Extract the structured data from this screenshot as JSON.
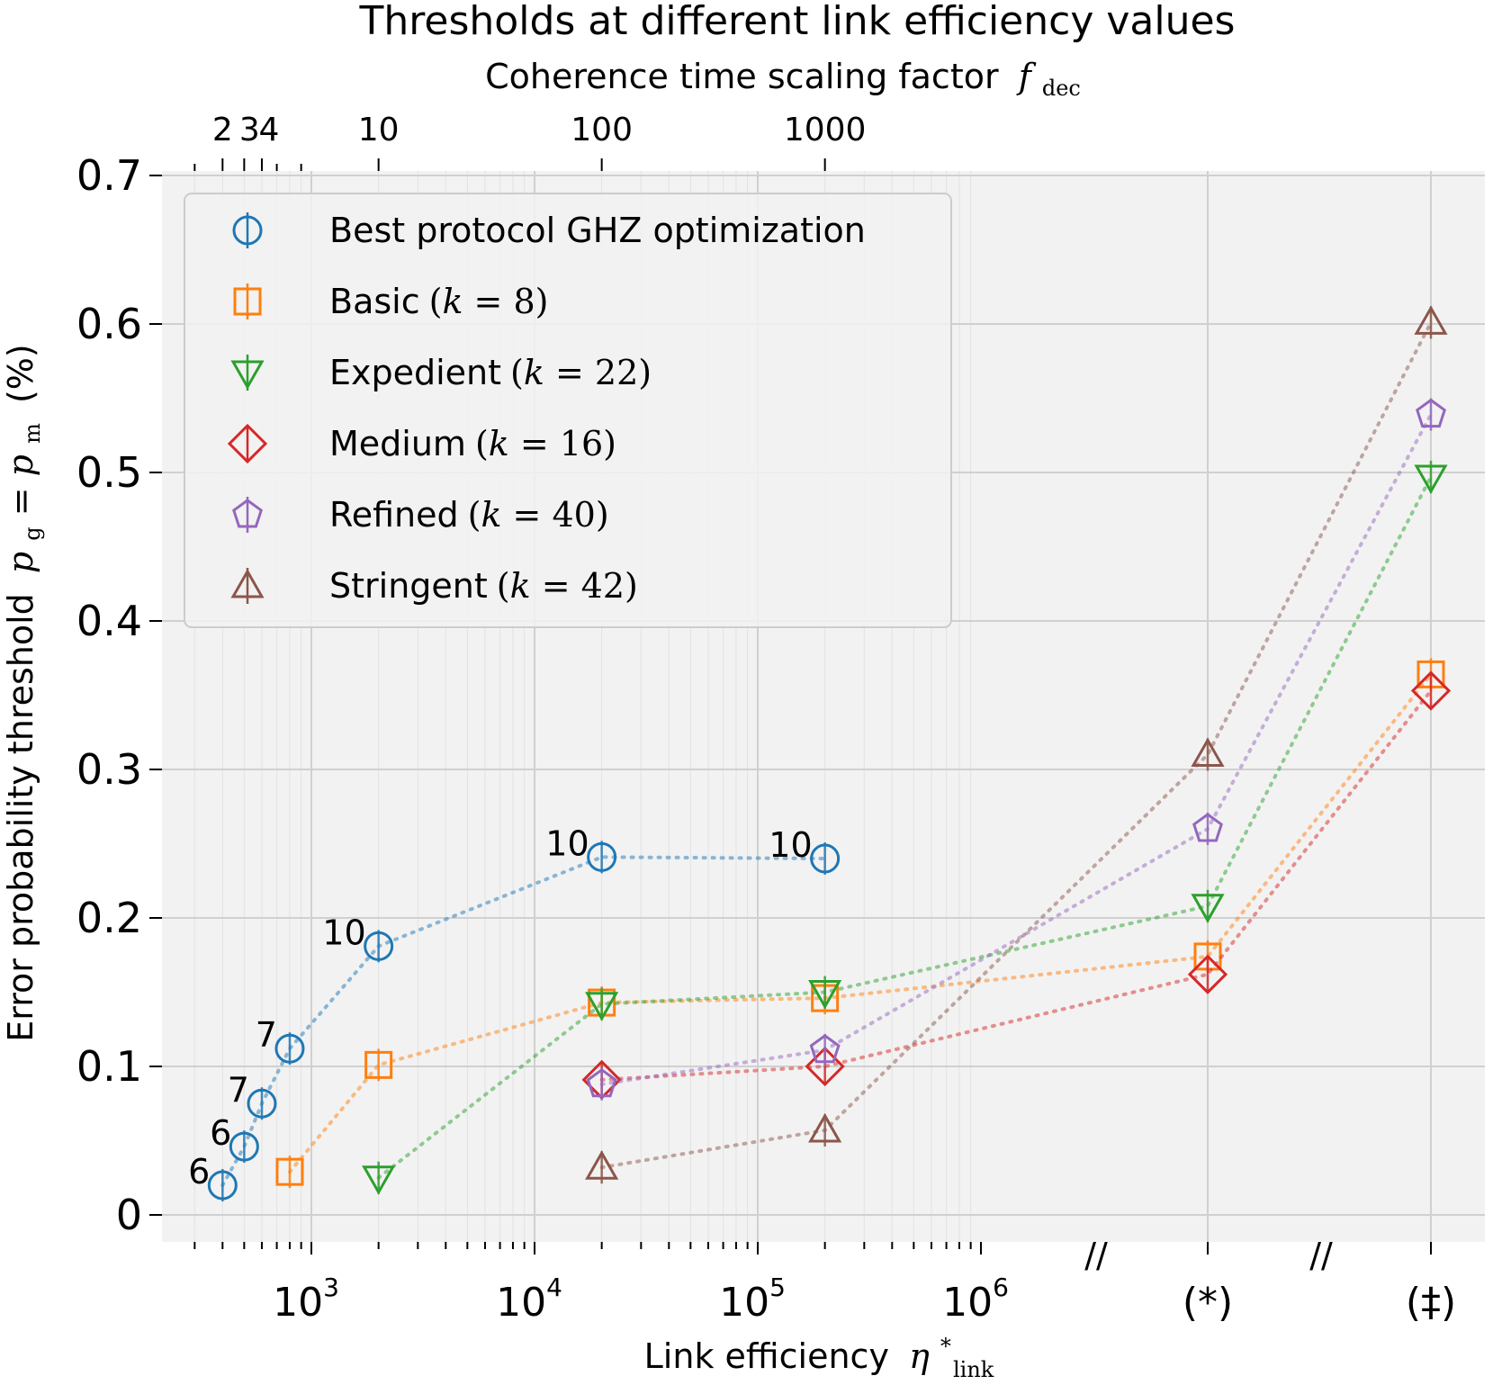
{
  "chart_data": {
    "type": "scatter",
    "title": "Thresholds at different link efficiency values",
    "top_axis": {
      "label": "Coherence time scaling factor",
      "label_symbol": "f",
      "label_subscript": "dec",
      "ticks": [
        {
          "label": "2",
          "value": 2
        },
        {
          "label": "3",
          "value": 3
        },
        {
          "label": "4",
          "value": 4
        },
        {
          "label": "10",
          "value": 10
        },
        {
          "label": "100",
          "value": 100
        },
        {
          "label": "1000",
          "value": 1000
        }
      ]
    },
    "xlabel": "Link efficiency",
    "xlabel_symbol": "η",
    "xlabel_subscript": "link",
    "xlabel_superscript": "*",
    "x_scale": "log",
    "xlim": [
      250,
      2000000
    ],
    "x_ticks": [
      {
        "base": "10",
        "exp": "3",
        "value": 1000
      },
      {
        "base": "10",
        "exp": "4",
        "value": 10000
      },
      {
        "base": "10",
        "exp": "5",
        "value": 100000
      },
      {
        "base": "10",
        "exp": "6",
        "value": 1000000
      }
    ],
    "x_special_ticks": [
      "(*)",
      "(‡)"
    ],
    "axis_break_mark": "//",
    "ylabel": "Error probability threshold",
    "ylabel_math": {
      "p1": "p",
      "s1": "g",
      "p2": "p",
      "s2": "m",
      "unit": "(%)"
    },
    "ylim": [
      0,
      0.7
    ],
    "y_ticks": [
      "0",
      "0.1",
      "0.2",
      "0.3",
      "0.4",
      "0.5",
      "0.6",
      "0.7"
    ],
    "grid": true,
    "legend_position": "top-left",
    "series": [
      {
        "name": "Best protocol GHZ optimization",
        "k_label": "",
        "marker": "circle",
        "color": "#1f77b4",
        "points": [
          {
            "x": 400,
            "y": 0.02,
            "label": "6"
          },
          {
            "x": 500,
            "y": 0.046,
            "label": "6"
          },
          {
            "x": 600,
            "y": 0.075,
            "label": "7"
          },
          {
            "x": 800,
            "y": 0.112,
            "label": "7"
          },
          {
            "x": 2000,
            "y": 0.181,
            "label": "10"
          },
          {
            "x": 20000,
            "y": 0.241,
            "label": "10"
          },
          {
            "x": 200000,
            "y": 0.24,
            "label": "10"
          }
        ]
      },
      {
        "name": "Basic",
        "k_label": "8",
        "marker": "square",
        "color": "#ff7f0e",
        "points": [
          {
            "x": 800,
            "y": 0.029
          },
          {
            "x": 2000,
            "y": 0.101
          },
          {
            "x": 20000,
            "y": 0.143
          },
          {
            "x": 200000,
            "y": 0.146
          },
          {
            "x": "(*)",
            "y": 0.174
          },
          {
            "x": "(‡)",
            "y": 0.364
          }
        ]
      },
      {
        "name": "Expedient",
        "k_label": "22",
        "marker": "triangle-down",
        "color": "#2ca02c",
        "points": [
          {
            "x": 2000,
            "y": 0.025
          },
          {
            "x": 20000,
            "y": 0.142
          },
          {
            "x": 200000,
            "y": 0.15
          },
          {
            "x": "(*)",
            "y": 0.208
          },
          {
            "x": "(‡)",
            "y": 0.497
          }
        ]
      },
      {
        "name": "Medium",
        "k_label": "16",
        "marker": "diamond",
        "color": "#d62728",
        "points": [
          {
            "x": 20000,
            "y": 0.091
          },
          {
            "x": 200000,
            "y": 0.1
          },
          {
            "x": "(*)",
            "y": 0.162
          },
          {
            "x": "(‡)",
            "y": 0.353
          }
        ]
      },
      {
        "name": "Refined",
        "k_label": "40",
        "marker": "pentagon",
        "color": "#9467bd",
        "points": [
          {
            "x": 20000,
            "y": 0.088
          },
          {
            "x": 200000,
            "y": 0.111
          },
          {
            "x": "(*)",
            "y": 0.26
          },
          {
            "x": "(‡)",
            "y": 0.539
          }
        ]
      },
      {
        "name": "Stringent",
        "k_label": "42",
        "marker": "triangle-up",
        "color": "#8c564b",
        "points": [
          {
            "x": 20000,
            "y": 0.032
          },
          {
            "x": 200000,
            "y": 0.057
          },
          {
            "x": "(*)",
            "y": 0.31
          },
          {
            "x": "(‡)",
            "y": 0.601
          }
        ]
      }
    ]
  }
}
